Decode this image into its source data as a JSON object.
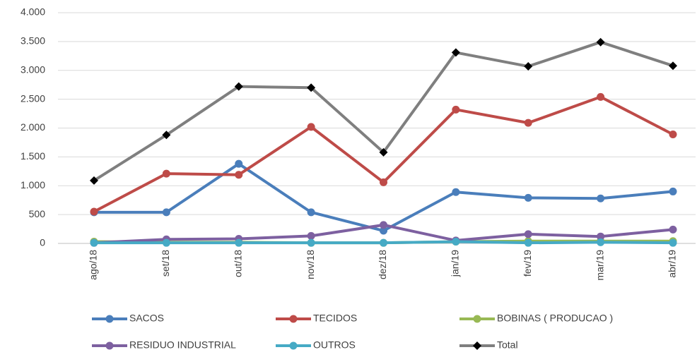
{
  "chart_data": {
    "type": "line",
    "categories": [
      "ago/18",
      "set/18",
      "out/18",
      "nov/18",
      "dez/18",
      "jan/19",
      "fev/19",
      "mar/19",
      "abr/19"
    ],
    "series": [
      {
        "name": "SACOS",
        "color": "#4a7ebb",
        "marker": "circle",
        "values": [
          540,
          540,
          1380,
          540,
          220,
          890,
          790,
          780,
          900
        ]
      },
      {
        "name": "TECIDOS",
        "color": "#be4b48",
        "marker": "circle",
        "values": [
          550,
          1210,
          1190,
          2020,
          1060,
          2320,
          2090,
          2540,
          1890
        ]
      },
      {
        "name": "BOBINAS ( PRODUCAO )",
        "color": "#98b954",
        "marker": "circle",
        "values": [
          30,
          20,
          20,
          10,
          10,
          30,
          40,
          40,
          40
        ]
      },
      {
        "name": "RESIDUO INDUSTRIAL",
        "color": "#7d60a0",
        "marker": "circle",
        "values": [
          10,
          70,
          80,
          130,
          320,
          50,
          160,
          120,
          240
        ]
      },
      {
        "name": "OUTROS",
        "color": "#46aac5",
        "marker": "circle",
        "values": [
          10,
          10,
          10,
          10,
          10,
          30,
          10,
          20,
          10
        ]
      },
      {
        "name": "Total",
        "color": "#7f7f7f",
        "marker": "diamond",
        "values": [
          1090,
          1880,
          2720,
          2700,
          1580,
          3310,
          3070,
          3490,
          3080
        ]
      }
    ],
    "ylim": [
      0,
      4000
    ],
    "yticks": [
      0,
      500,
      {
        "value": 1000,
        "label": "1.000"
      },
      {
        "value": 1500,
        "label": "1.500"
      },
      {
        "value": 2000,
        "label": "2.000"
      },
      {
        "value": 2500,
        "label": "2.500"
      },
      {
        "value": 3000,
        "label": "3.000"
      },
      {
        "value": 3500,
        "label": "3.500"
      },
      {
        "value": 4000,
        "label": "4.000"
      }
    ],
    "grid": true,
    "legend": "bottom"
  }
}
